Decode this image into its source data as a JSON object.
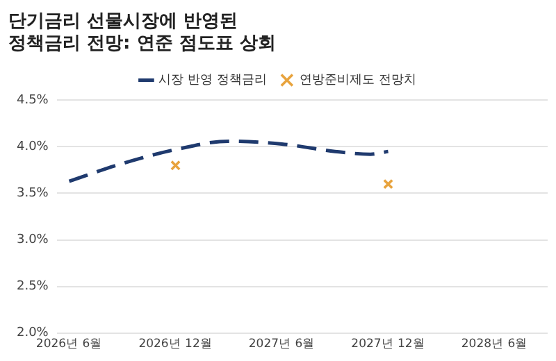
{
  "chart_data": {
    "type": "line",
    "title": "단기금리 선물시장에 반영된\n정책금리 전망: 연준 점도표 상회",
    "x": [
      "2026-06",
      "2026-09",
      "2026-12",
      "2027-03",
      "2027-06",
      "2027-09",
      "2027-11",
      "2027-12"
    ],
    "series": [
      {
        "name": "시장 반영 정책금리",
        "color": "#1f3a6e",
        "line_style": "dashed",
        "marker": "none",
        "values": [
          3.63,
          3.82,
          3.97,
          4.06,
          4.03,
          3.95,
          3.92,
          3.95
        ]
      },
      {
        "name": "연방준비제도 전망치",
        "type": "scatter",
        "color": "#e8a33d",
        "marker": "cross",
        "x": [
          "2026-12",
          "2027-12"
        ],
        "values": [
          3.8,
          3.6
        ]
      }
    ],
    "xlim": [
      "2026-05-10",
      "2028-09"
    ],
    "xticks": [
      {
        "value": "2026-06",
        "label": "2026년 6월"
      },
      {
        "value": "2026-12",
        "label": "2026년 12월"
      },
      {
        "value": "2027-06",
        "label": "2027년 6월"
      },
      {
        "value": "2027-12",
        "label": "2027년 12월"
      },
      {
        "value": "2028-06",
        "label": "2028년 6월"
      }
    ],
    "ylim": [
      2.0,
      4.5
    ],
    "yticks": [
      {
        "value": 2.0,
        "label": "2.0%"
      },
      {
        "value": 2.5,
        "label": "2.5%"
      },
      {
        "value": 3.0,
        "label": "3.0%"
      },
      {
        "value": 3.5,
        "label": "3.5%"
      },
      {
        "value": 4.0,
        "label": "4.0%"
      },
      {
        "value": 4.5,
        "label": "4.5%"
      }
    ],
    "grid": "y",
    "legend": "top"
  }
}
